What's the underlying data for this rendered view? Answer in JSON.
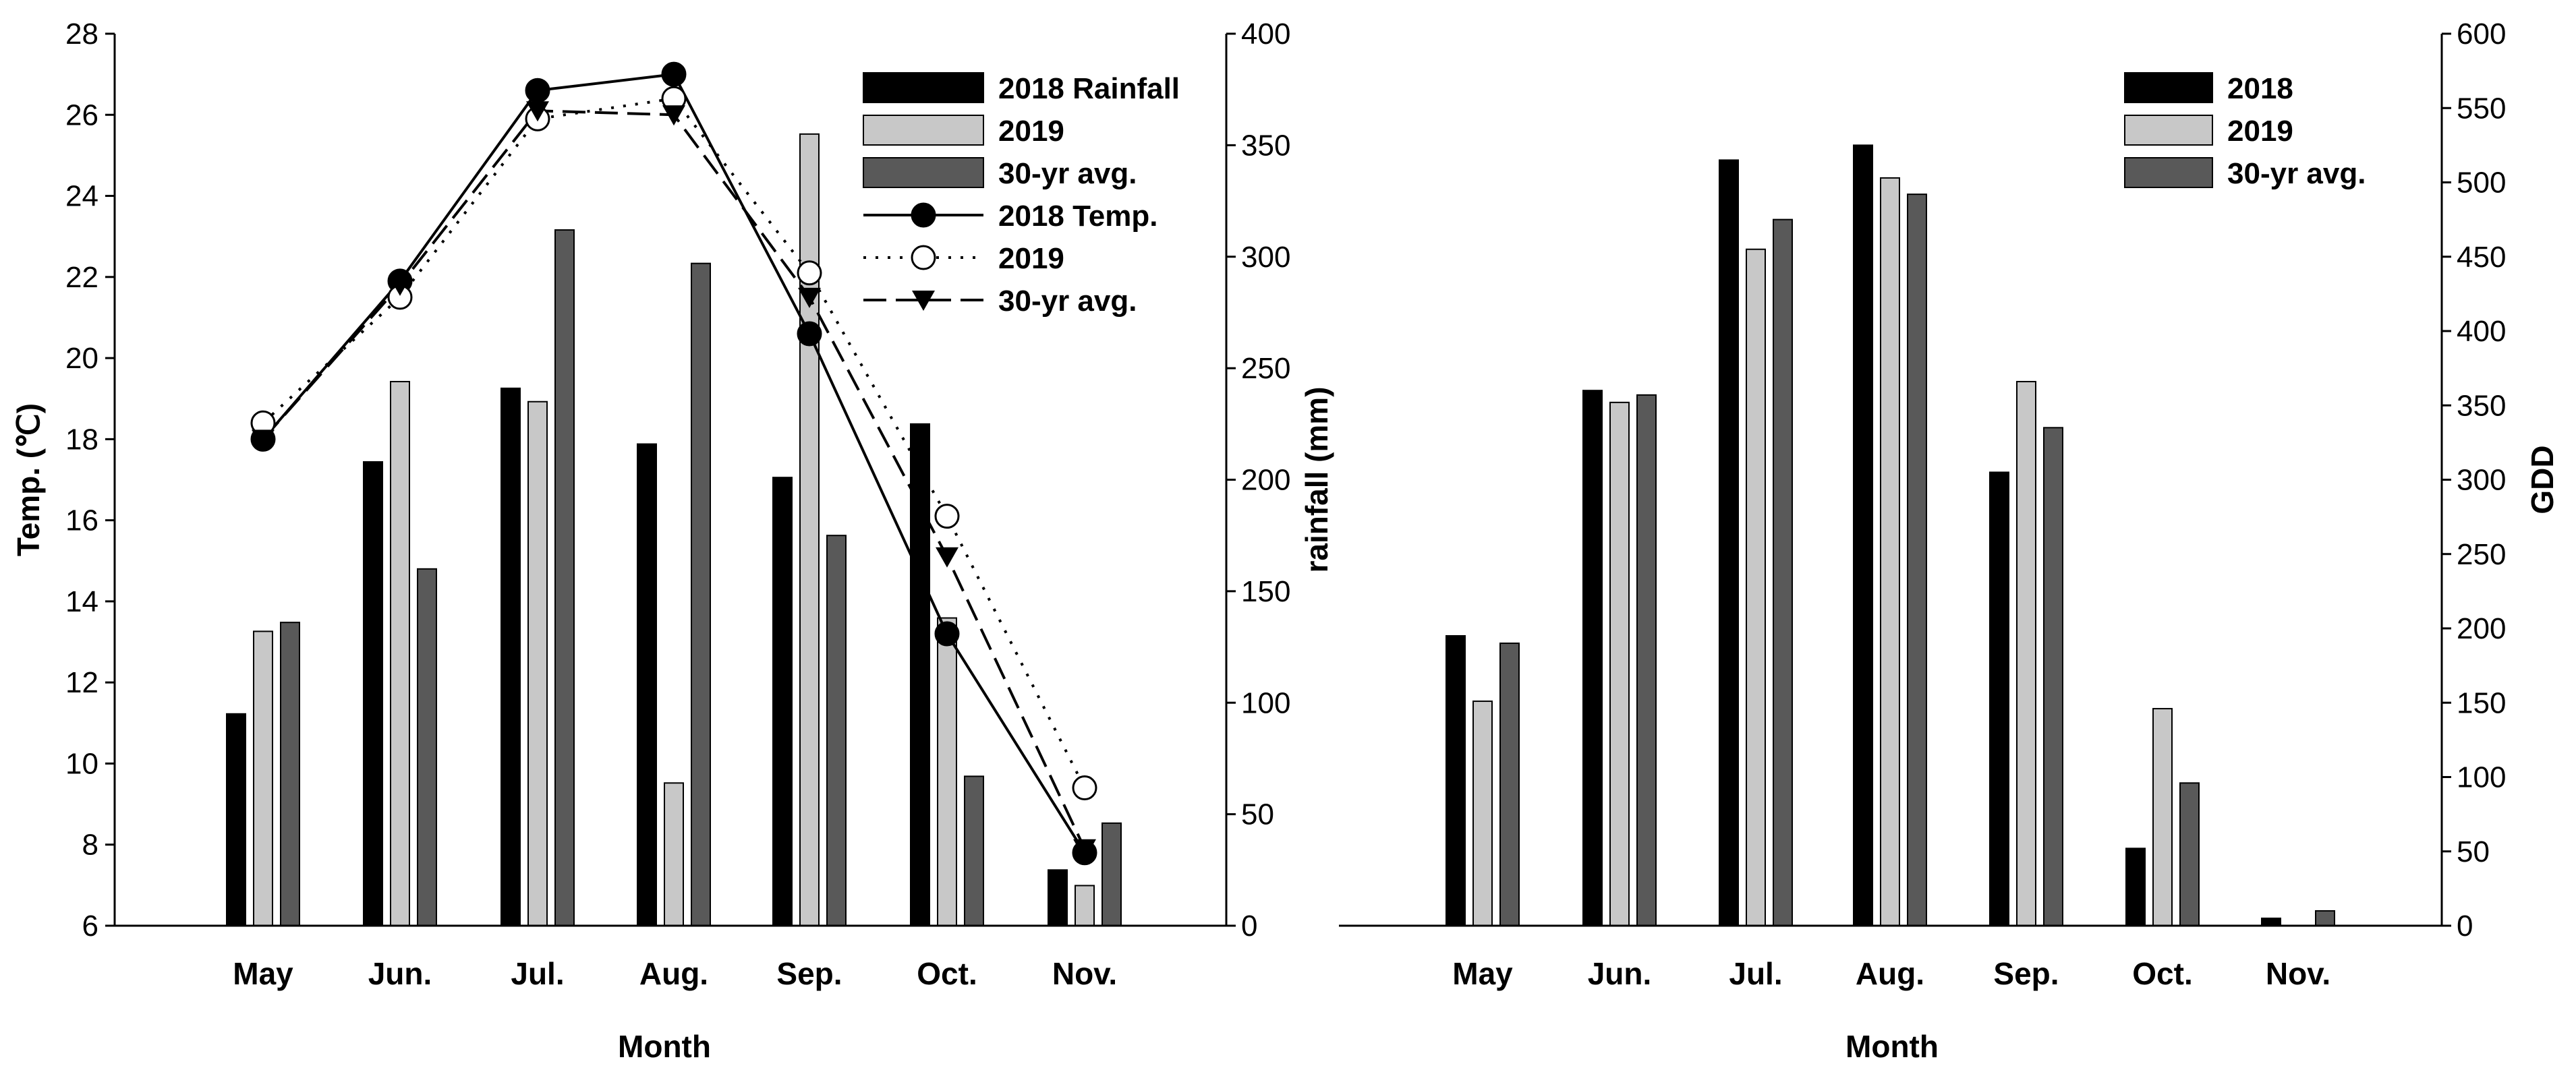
{
  "chart_data": [
    {
      "type": "bar+line",
      "title": "",
      "xlabel": "Month",
      "ylabel_left": "Temp. (℃)",
      "ylabel_right": "rainfall (mm)",
      "categories": [
        "May",
        "Jun.",
        "Jul.",
        "Aug.",
        "Sep.",
        "Oct.",
        "Nov."
      ],
      "ylim_left": [
        6,
        28
      ],
      "yticks_left": [
        6,
        8,
        10,
        12,
        14,
        16,
        18,
        20,
        22,
        24,
        26,
        28
      ],
      "ylim_right": [
        0,
        400
      ],
      "yticks_right": [
        0,
        50,
        100,
        150,
        200,
        250,
        300,
        350,
        400
      ],
      "bar_series": [
        {
          "name": "2018 Rainfall",
          "color": "#000000",
          "values": [
            95,
            208,
            241,
            216,
            201,
            225,
            25
          ]
        },
        {
          "name": "2019",
          "color": "#c8c8c8",
          "values": [
            132,
            244,
            235,
            64,
            355,
            138,
            18
          ]
        },
        {
          "name": "30-yr avg.",
          "color": "#595959",
          "values": [
            136,
            160,
            312,
            297,
            175,
            67,
            46
          ]
        }
      ],
      "line_series": [
        {
          "name": "2018  Temp.",
          "marker": "filled-circle",
          "style": "solid",
          "values": [
            18.0,
            21.9,
            26.6,
            27.0,
            20.6,
            13.2,
            7.8
          ]
        },
        {
          "name": "2019",
          "marker": "open-circle",
          "style": "dotted",
          "values": [
            18.4,
            21.5,
            25.9,
            26.4,
            22.1,
            16.1,
            9.4
          ]
        },
        {
          "name": "30-yr avg.",
          "marker": "filled-triangle-down",
          "style": "dashed",
          "values": [
            18.0,
            21.8,
            26.1,
            26.0,
            21.5,
            15.1,
            7.9
          ]
        }
      ],
      "legend_position": "top-right"
    },
    {
      "type": "bar",
      "title": "",
      "xlabel": "Month",
      "ylabel": "GDD",
      "categories": [
        "May",
        "Jun.",
        "Jul.",
        "Aug.",
        "Sep.",
        "Oct.",
        "Nov."
      ],
      "ylim": [
        0,
        600
      ],
      "yticks": [
        0,
        50,
        100,
        150,
        200,
        250,
        300,
        350,
        400,
        450,
        500,
        550,
        600
      ],
      "series": [
        {
          "name": "2018",
          "color": "#000000",
          "values": [
            195,
            360,
            515,
            525,
            305,
            52,
            5
          ]
        },
        {
          "name": "2019",
          "color": "#c8c8c8",
          "values": [
            151,
            352,
            455,
            503,
            366,
            146,
            0
          ]
        },
        {
          "name": "30-yr avg.",
          "color": "#595959",
          "values": [
            190,
            357,
            475,
            492,
            335,
            96,
            10
          ]
        }
      ],
      "legend_position": "top-right"
    }
  ]
}
